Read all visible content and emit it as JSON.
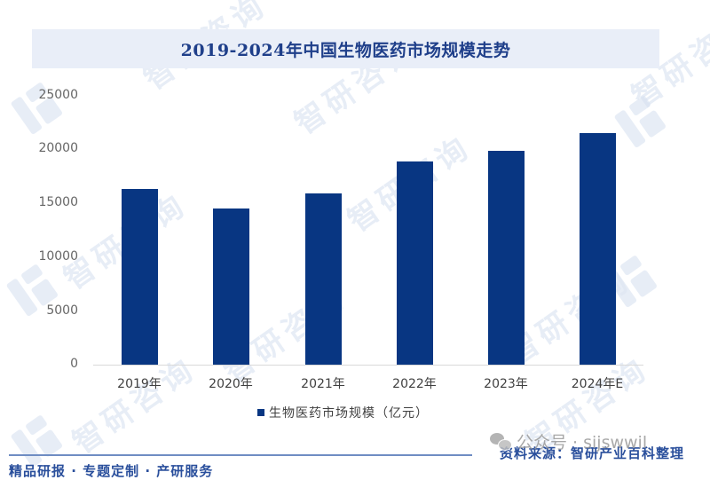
{
  "title": "2019-2024年中国生物医药市场规模走势",
  "legend": {
    "label": "生物医药市场规模（亿元）",
    "color": "#083682"
  },
  "y_axis": {
    "ticks": [
      "25000",
      "20000",
      "15000",
      "10000",
      "5000",
      "0"
    ]
  },
  "x_axis": {
    "labels": [
      "2019年",
      "2020年",
      "2021年",
      "2022年",
      "2023年",
      "2024年E"
    ]
  },
  "footer": {
    "left_text": "精品研报 · 专题定制 · 产研服务",
    "source": "资料来源：智研产业百科整理",
    "wechat_overlay": "公众号 · sijswwil"
  },
  "watermark": "智研咨询",
  "chart_data": {
    "type": "bar",
    "title": "2019-2024年中国生物医药市场规模走势",
    "categories": [
      "2019年",
      "2020年",
      "2021年",
      "2022年",
      "2023年",
      "2024年E"
    ],
    "series": [
      {
        "name": "生物医药市场规模（亿元）",
        "values": [
          16300,
          14500,
          15900,
          18800,
          19800,
          21500
        ],
        "color": "#083682"
      }
    ],
    "xlabel": "",
    "ylabel": "",
    "ylim": [
      0,
      25000
    ],
    "yticks": [
      0,
      5000,
      10000,
      15000,
      20000,
      25000
    ],
    "grid": false,
    "legend_position": "bottom"
  }
}
